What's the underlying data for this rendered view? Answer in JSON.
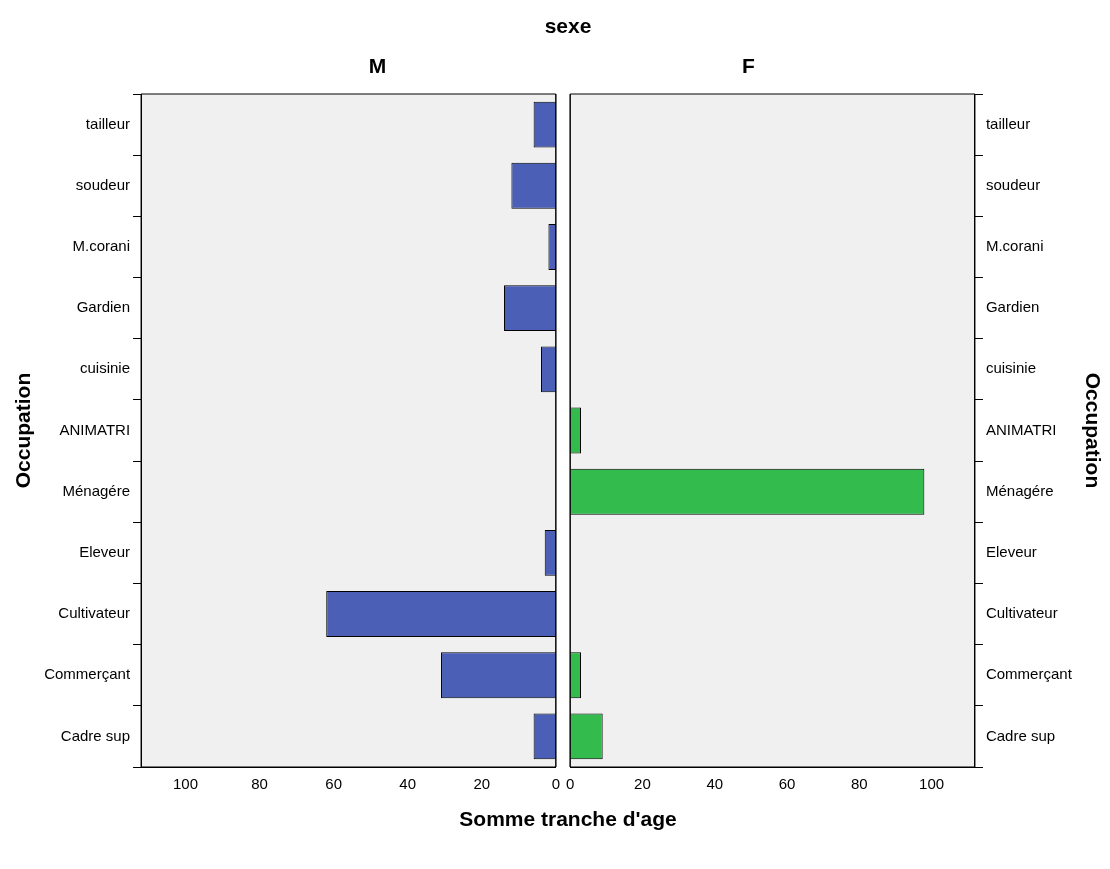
{
  "chart_data": [
    {
      "type": "bar",
      "orientation": "horizontal",
      "title": "M",
      "annotations": [
        "sexe"
      ],
      "xlabel": "Somme tranche d'age",
      "ylabel": "Occupation",
      "categories": [
        "tailleur",
        "soudeur",
        "M.corani",
        "Gardien",
        "cuisinie",
        "ANIMATRI",
        "Ménagére",
        "Eleveur",
        "Cultivateur",
        "Commerçant",
        "Cadre sup"
      ],
      "values": [
        6,
        12,
        2,
        14,
        4,
        null,
        null,
        3,
        62,
        31,
        6
      ],
      "color": "#4a5fb5",
      "xlim": [
        112,
        0
      ],
      "xticks": [
        100,
        80,
        60,
        40,
        20,
        0
      ],
      "grid": false
    },
    {
      "type": "bar",
      "orientation": "horizontal",
      "title": "F",
      "y2label": "Occupation",
      "categories": [
        "tailleur",
        "soudeur",
        "M.corani",
        "Gardien",
        "cuisinie",
        "ANIMATRI",
        "Ménagére",
        "Eleveur",
        "Cultivateur",
        "Commerçant",
        "Cadre sup"
      ],
      "values": [
        null,
        null,
        null,
        null,
        null,
        3,
        98,
        null,
        null,
        3,
        9
      ],
      "color": "#33bb4d",
      "xlim": [
        0,
        112
      ],
      "xticks": [
        0,
        20,
        40,
        60,
        80,
        100
      ],
      "grid": false
    }
  ]
}
